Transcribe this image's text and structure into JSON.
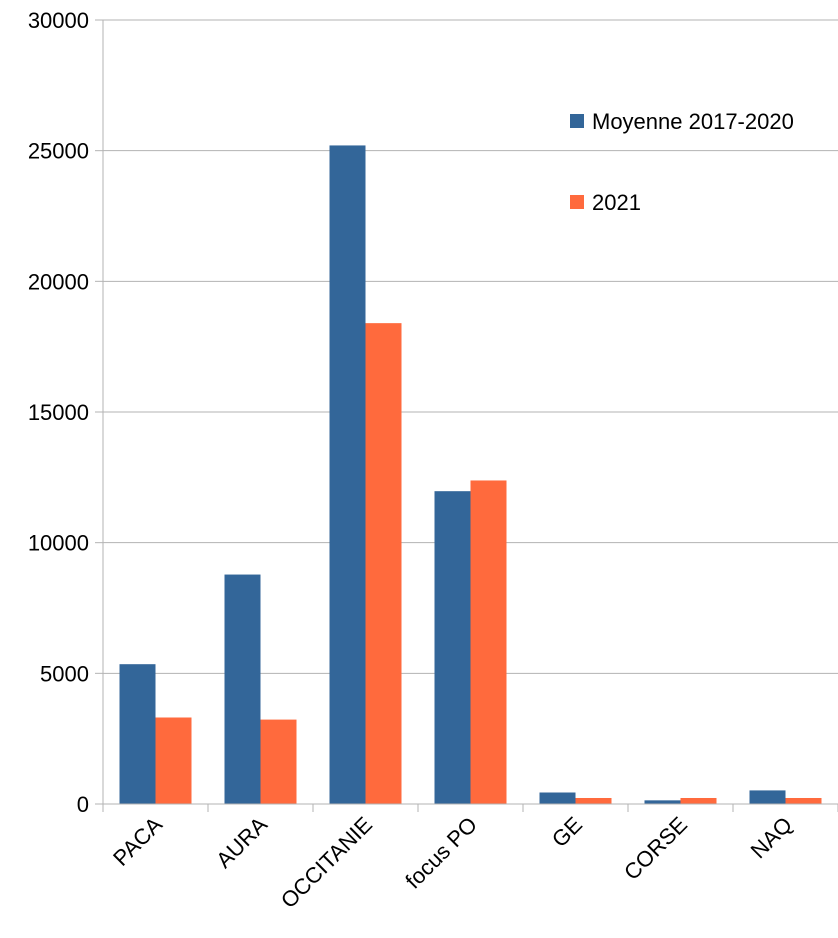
{
  "chart_data": {
    "type": "bar",
    "title": "",
    "xlabel": "",
    "ylabel": "",
    "categories": [
      "PACA",
      "AURA",
      "OCCITANIE",
      "focus PO",
      "GE",
      "CORSE",
      "NAQ"
    ],
    "series": [
      {
        "name": "Moyenne 2017-2020",
        "color": "#336699",
        "values": [
          5350,
          8780,
          25200,
          11970,
          440,
          140,
          520
        ]
      },
      {
        "name": "2021",
        "color": "#ff6a3d",
        "values": [
          3310,
          3230,
          18400,
          12380,
          230,
          230,
          230
        ]
      }
    ],
    "ylim": [
      0,
      30000
    ],
    "yticks": [
      "0",
      "5000",
      "10000",
      "15000",
      "20000",
      "25000",
      "30000"
    ],
    "grid": true,
    "legend": "top-right"
  }
}
